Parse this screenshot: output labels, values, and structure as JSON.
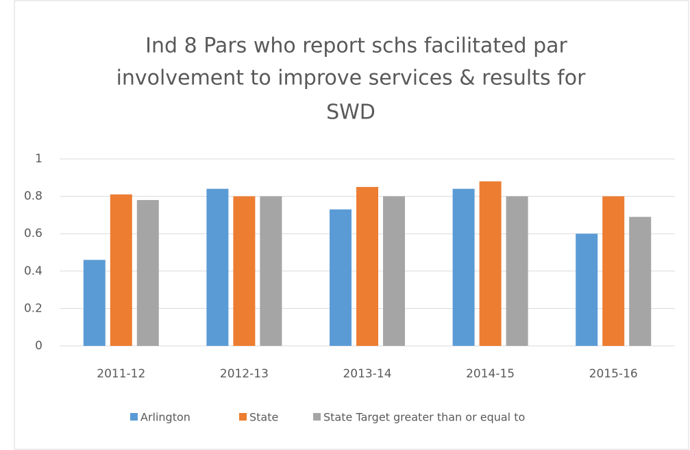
{
  "chart_data": {
    "type": "bar",
    "title": [
      "Ind 8 Pars who report schs facilitated par",
      "involvement  to improve services & results for",
      "SWD"
    ],
    "categories": [
      "2011-12",
      "2012-13",
      "2013-14",
      "2014-15",
      "2015-16"
    ],
    "series": [
      {
        "name": "Arlington",
        "color": "#5b9bd5",
        "values": [
          0.46,
          0.84,
          0.73,
          0.84,
          0.6
        ]
      },
      {
        "name": "State",
        "color": "#ed7d31",
        "values": [
          0.81,
          0.8,
          0.85,
          0.88,
          0.8
        ]
      },
      {
        "name": "State Target  greater than or equal to",
        "color": "#a5a5a5",
        "values": [
          0.78,
          0.8,
          0.8,
          0.8,
          0.69
        ]
      }
    ],
    "ylim": [
      0,
      1
    ],
    "yticks": [
      0,
      0.2,
      0.4,
      0.6,
      0.8,
      1
    ],
    "grid": true,
    "legend": "bottom"
  }
}
